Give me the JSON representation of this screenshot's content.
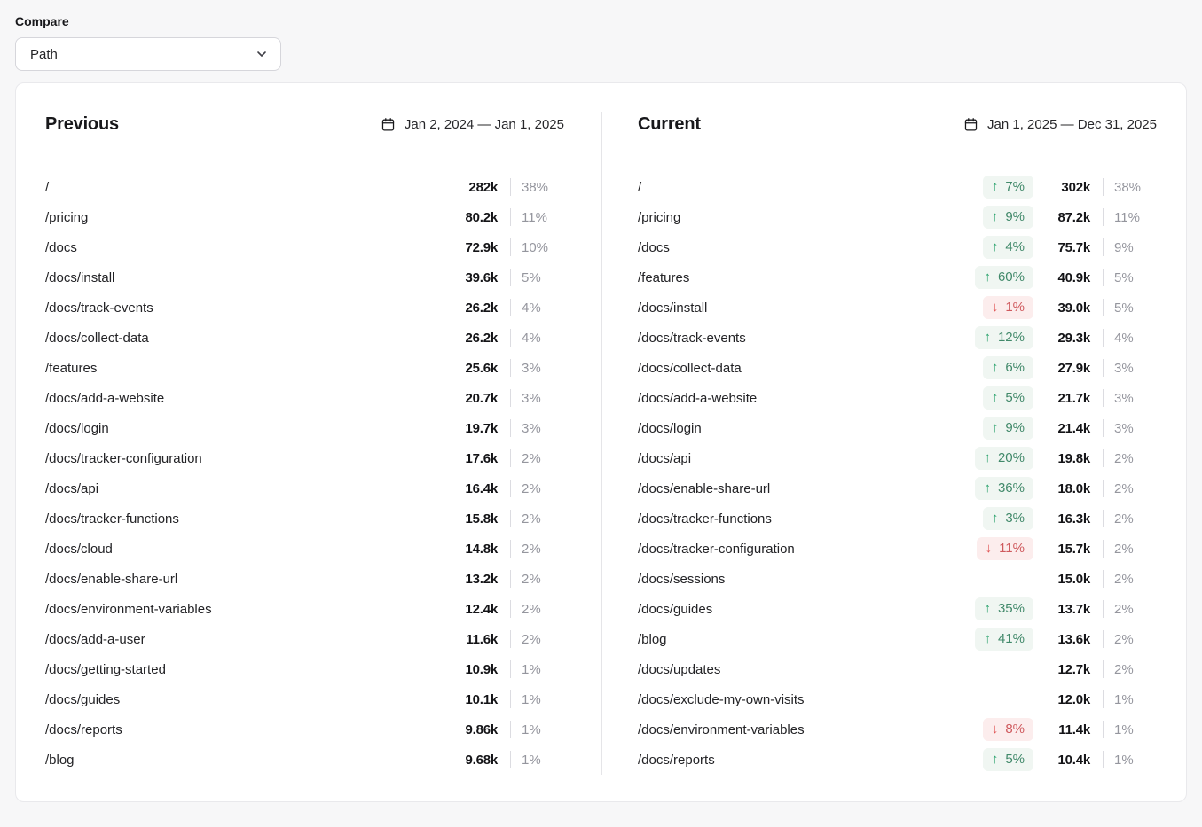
{
  "compare": {
    "label": "Compare",
    "selected": "Path"
  },
  "panels": [
    {
      "title": "Previous",
      "date_range": "Jan 2, 2024 — Jan 1, 2025",
      "rows": [
        {
          "path": "/",
          "value": "282k",
          "share": "38%"
        },
        {
          "path": "/pricing",
          "value": "80.2k",
          "share": "11%"
        },
        {
          "path": "/docs",
          "value": "72.9k",
          "share": "10%"
        },
        {
          "path": "/docs/install",
          "value": "39.6k",
          "share": "5%"
        },
        {
          "path": "/docs/track-events",
          "value": "26.2k",
          "share": "4%"
        },
        {
          "path": "/docs/collect-data",
          "value": "26.2k",
          "share": "4%"
        },
        {
          "path": "/features",
          "value": "25.6k",
          "share": "3%"
        },
        {
          "path": "/docs/add-a-website",
          "value": "20.7k",
          "share": "3%"
        },
        {
          "path": "/docs/login",
          "value": "19.7k",
          "share": "3%"
        },
        {
          "path": "/docs/tracker-configuration",
          "value": "17.6k",
          "share": "2%"
        },
        {
          "path": "/docs/api",
          "value": "16.4k",
          "share": "2%"
        },
        {
          "path": "/docs/tracker-functions",
          "value": "15.8k",
          "share": "2%"
        },
        {
          "path": "/docs/cloud",
          "value": "14.8k",
          "share": "2%"
        },
        {
          "path": "/docs/enable-share-url",
          "value": "13.2k",
          "share": "2%"
        },
        {
          "path": "/docs/environment-variables",
          "value": "12.4k",
          "share": "2%"
        },
        {
          "path": "/docs/add-a-user",
          "value": "11.6k",
          "share": "2%"
        },
        {
          "path": "/docs/getting-started",
          "value": "10.9k",
          "share": "1%"
        },
        {
          "path": "/docs/guides",
          "value": "10.1k",
          "share": "1%"
        },
        {
          "path": "/docs/reports",
          "value": "9.86k",
          "share": "1%"
        },
        {
          "path": "/blog",
          "value": "9.68k",
          "share": "1%"
        }
      ]
    },
    {
      "title": "Current",
      "date_range": "Jan 1, 2025 — Dec 31, 2025",
      "rows": [
        {
          "path": "/",
          "dir": "up",
          "change": "7%",
          "value": "302k",
          "share": "38%"
        },
        {
          "path": "/pricing",
          "dir": "up",
          "change": "9%",
          "value": "87.2k",
          "share": "11%"
        },
        {
          "path": "/docs",
          "dir": "up",
          "change": "4%",
          "value": "75.7k",
          "share": "9%"
        },
        {
          "path": "/features",
          "dir": "up",
          "change": "60%",
          "value": "40.9k",
          "share": "5%"
        },
        {
          "path": "/docs/install",
          "dir": "down",
          "change": "1%",
          "value": "39.0k",
          "share": "5%"
        },
        {
          "path": "/docs/track-events",
          "dir": "up",
          "change": "12%",
          "value": "29.3k",
          "share": "4%"
        },
        {
          "path": "/docs/collect-data",
          "dir": "up",
          "change": "6%",
          "value": "27.9k",
          "share": "3%"
        },
        {
          "path": "/docs/add-a-website",
          "dir": "up",
          "change": "5%",
          "value": "21.7k",
          "share": "3%"
        },
        {
          "path": "/docs/login",
          "dir": "up",
          "change": "9%",
          "value": "21.4k",
          "share": "3%"
        },
        {
          "path": "/docs/api",
          "dir": "up",
          "change": "20%",
          "value": "19.8k",
          "share": "2%"
        },
        {
          "path": "/docs/enable-share-url",
          "dir": "up",
          "change": "36%",
          "value": "18.0k",
          "share": "2%"
        },
        {
          "path": "/docs/tracker-functions",
          "dir": "up",
          "change": "3%",
          "value": "16.3k",
          "share": "2%"
        },
        {
          "path": "/docs/tracker-configuration",
          "dir": "down",
          "change": "11%",
          "value": "15.7k",
          "share": "2%"
        },
        {
          "path": "/docs/sessions",
          "value": "15.0k",
          "share": "2%"
        },
        {
          "path": "/docs/guides",
          "dir": "up",
          "change": "35%",
          "value": "13.7k",
          "share": "2%"
        },
        {
          "path": "/blog",
          "dir": "up",
          "change": "41%",
          "value": "13.6k",
          "share": "2%"
        },
        {
          "path": "/docs/updates",
          "value": "12.7k",
          "share": "2%"
        },
        {
          "path": "/docs/exclude-my-own-visits",
          "value": "12.0k",
          "share": "1%"
        },
        {
          "path": "/docs/environment-variables",
          "dir": "down",
          "change": "8%",
          "value": "11.4k",
          "share": "1%"
        },
        {
          "path": "/docs/reports",
          "dir": "up",
          "change": "5%",
          "value": "10.4k",
          "share": "1%"
        }
      ]
    }
  ],
  "icons": {
    "chevron": "chevron-down-icon",
    "calendar": "calendar-icon",
    "arrow_up": "↑",
    "arrow_down": "↓"
  },
  "colors": {
    "positive_text": "#41896a",
    "positive_arrow": "#2ba36d",
    "positive_bg": "#f0f6f2",
    "negative_text": "#cf5a5e",
    "negative_arrow": "#e05555",
    "negative_bg": "#fceded",
    "muted_percent": "#95969e",
    "page_bg": "#f7f7f8",
    "card_bg": "#ffffff"
  }
}
